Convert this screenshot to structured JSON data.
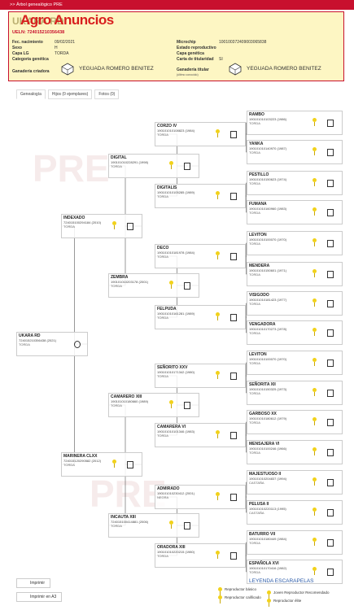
{
  "nav": {
    "breadcrumb": ">> Árbol genealógico PRE"
  },
  "header": {
    "brand": "Agro Anuncios",
    "name": "UKARA RD",
    "ueln": "UELN: 724015210356438",
    "fields_left": [
      {
        "label": "Fec. nacimiento",
        "value": "09/02/2021"
      },
      {
        "label": "Sexo",
        "value": "H"
      },
      {
        "label": "Capa LG",
        "value": "TORDA"
      },
      {
        "label": "Categoría genética"
      }
    ],
    "fields_right": [
      {
        "label": "Microchip",
        "value": "100100372409003065838"
      },
      {
        "label": "Estado reproductivo"
      },
      {
        "label": "Capa genética"
      },
      {
        "label": "Carta de titularidad",
        "value": "SI"
      }
    ],
    "breeder": {
      "label": "Ganadería criadora",
      "value": "YEGUADA ROMERO BENITEZ"
    },
    "owner": {
      "label": "Ganadería titular",
      "note": "(último conocido)",
      "value": "YEGUADA ROMERO BENITEZ"
    }
  },
  "tabs": [
    "Genealogía",
    "Hijos (0 ejemplares)",
    "Fotos (0)"
  ],
  "tree": {
    "nodes": [
      {
        "name": "UKARA RD",
        "code": "724015210356438 (2021)",
        "color": "TORDA"
      },
      {
        "name": "INDEXADO",
        "code": "724015100294184 (2010)",
        "color": "TORDA"
      },
      {
        "name": "MARINERA CLXX",
        "code": "724015120290582 (2012)",
        "color": "TORDA"
      },
      {
        "name": "DIGITAL",
        "code": "190101010228291 (1998)",
        "color": "TORDA"
      },
      {
        "name": "ZEMBRA",
        "code": "190101010203178 (2001)",
        "color": "TORDA"
      },
      {
        "name": "CAMARERO XIII",
        "code": "190101010180660 (1989)",
        "color": "TORDA"
      },
      {
        "name": "INCAUTA XIII",
        "code": "724015100414881 (2006)",
        "color": "TORDA"
      },
      {
        "name": "CORZO IV",
        "code": "190101010108823 (1984)",
        "color": "TORDA"
      },
      {
        "name": "DIGITALIS",
        "code": "190101010105285 (1989)",
        "color": "TORDA"
      },
      {
        "name": "DECO",
        "code": "190101010181978 (1984)",
        "color": "TORDA"
      },
      {
        "name": "FELPUDA",
        "code": "190101010161281 (1989)",
        "color": "TORDA"
      },
      {
        "name": "SEÑORITO XXV",
        "code": "190101010171342 (1980)",
        "color": "TORDA"
      },
      {
        "name": "CAMARERA VI",
        "code": "190101010101346 (1983)",
        "color": "TORDA"
      },
      {
        "name": "ADMIRADO",
        "code": "190101010230412 (2001)",
        "color": "NEGRA"
      },
      {
        "name": "ORADORA XIII",
        "code": "190101010220215 (1980)",
        "color": "TORDA"
      },
      {
        "name": "RAMBO",
        "code": "190101010103223 (1986)",
        "color": "TORDA"
      },
      {
        "name": "YANKA",
        "code": "190101010140970 (1987)",
        "color": "TORDA"
      },
      {
        "name": "PESTILLO",
        "code": "190101010150623 (1974)",
        "color": "TORDA"
      },
      {
        "name": "FUMANA",
        "code": "190101010160960 (1983)",
        "color": "TORDA"
      },
      {
        "name": "LEVITON",
        "code": "190101010100070 (1970)",
        "color": "TORDA"
      },
      {
        "name": "MENDERA",
        "code": "190101010150601 (1971)",
        "color": "TORDA"
      },
      {
        "name": "VISIGODO",
        "code": "190101010181423 (1977)",
        "color": "TORDA"
      },
      {
        "name": "VENGADORA",
        "code": "190101010170273 (1978)",
        "color": "TORDA"
      },
      {
        "name": "LEVITON",
        "code": "190101010100070 (1970)",
        "color": "TORDA"
      },
      {
        "name": "SEÑORITA XII",
        "code": "190101010150325 (1973)",
        "color": "TORDA"
      },
      {
        "name": "GARBOSO XX",
        "code": "190101010180612 (1979)",
        "color": "TORDA"
      },
      {
        "name": "MENSAJERA VI",
        "code": "190101010100246 (1966)",
        "color": "TORDA"
      },
      {
        "name": "MAJESTUOSO II",
        "code": "190101010204837 (1994)",
        "color": "CASTAÑA"
      },
      {
        "name": "PELUSA II",
        "code": "190101010220113 (1995)",
        "color": "CASTAÑA"
      },
      {
        "name": "BATURRO VII",
        "code": "190101010180449 (1984)",
        "color": "TORDA"
      },
      {
        "name": "ESPAÑOLA XVI",
        "code": "190101010170416 (1982)",
        "color": "TORDA"
      }
    ]
  },
  "buttons": [
    "Imprimir",
    "Imprimir en A3"
  ],
  "legend": {
    "title": "LEYENDA ESCARAPELAS",
    "items": [
      "Reproductor básico",
      "Joven Reproductor Recomendado",
      "Reproductor calificado",
      "Reproductor élite"
    ]
  }
}
